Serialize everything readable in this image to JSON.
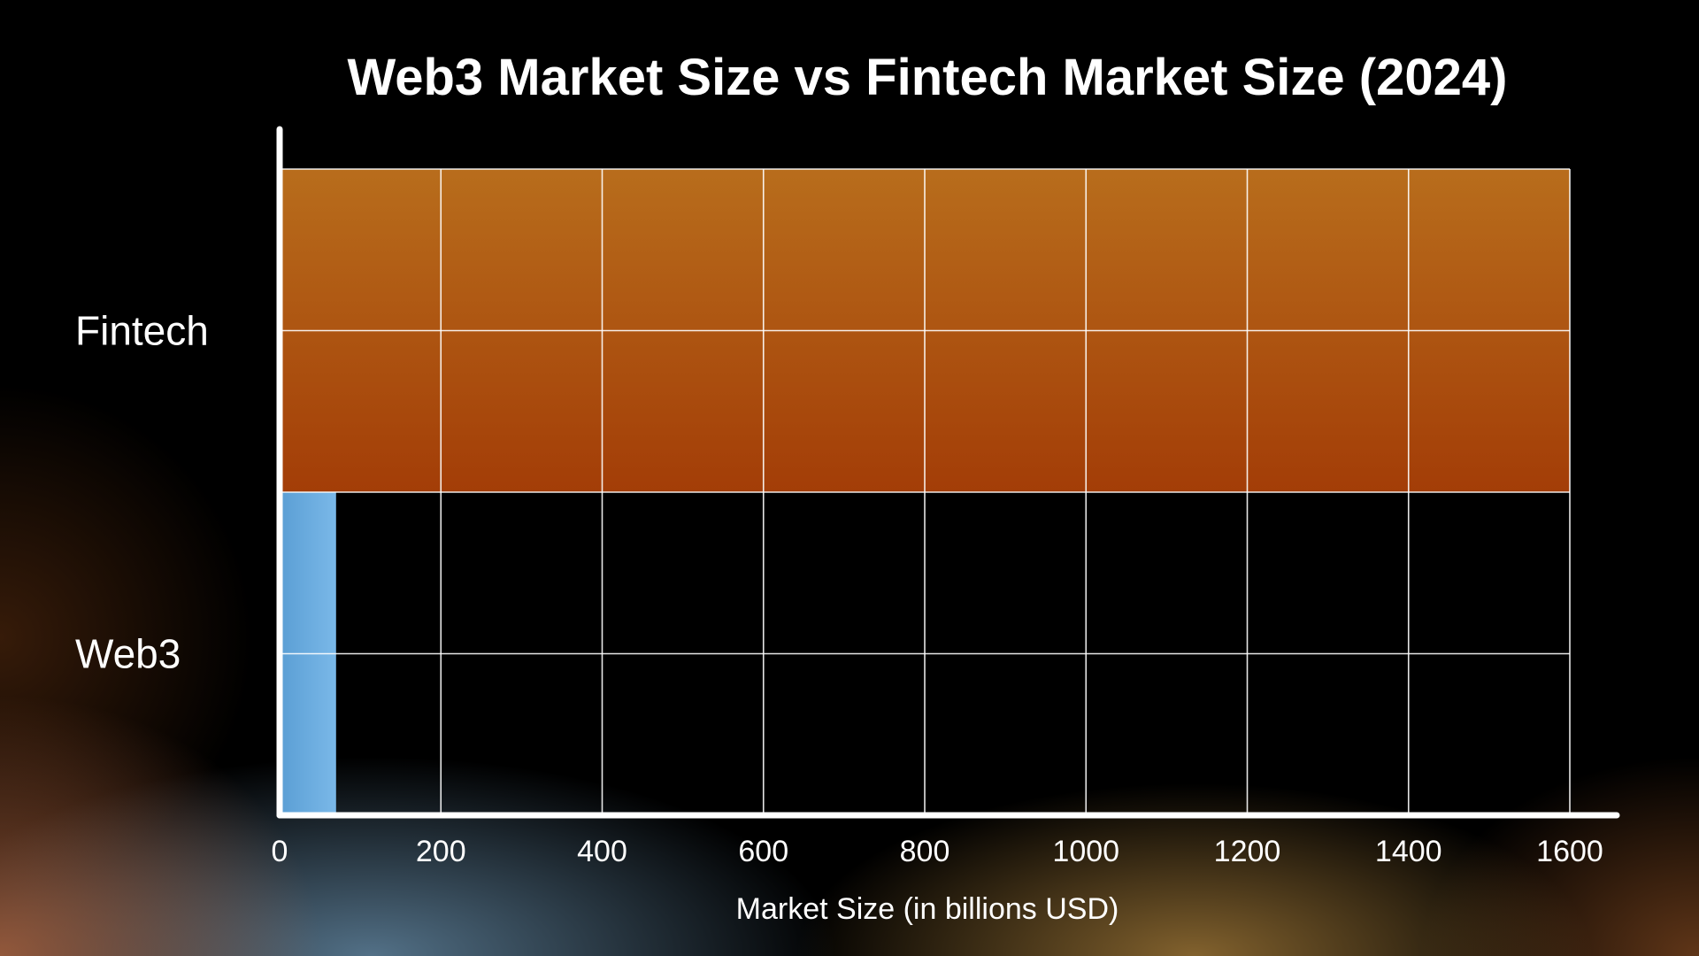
{
  "chart_data": {
    "type": "bar",
    "orientation": "horizontal",
    "title": "Web3 Market Size vs Fintech Market Size (2024)",
    "xlabel": "Market Size (in billions USD)",
    "ylabel": "",
    "categories": [
      "Fintech",
      "Web3"
    ],
    "values": [
      1600,
      70
    ],
    "xlim": [
      0,
      1600
    ],
    "xticks": [
      "0",
      "200",
      "400",
      "600",
      "800",
      "1000",
      "1200",
      "1400",
      "1600"
    ],
    "grid": true,
    "colors": {
      "Fintech": [
        "#b86d1c",
        "#a33d07"
      ],
      "Web3": [
        "#5a9ed4",
        "#7ab8e8"
      ]
    }
  }
}
